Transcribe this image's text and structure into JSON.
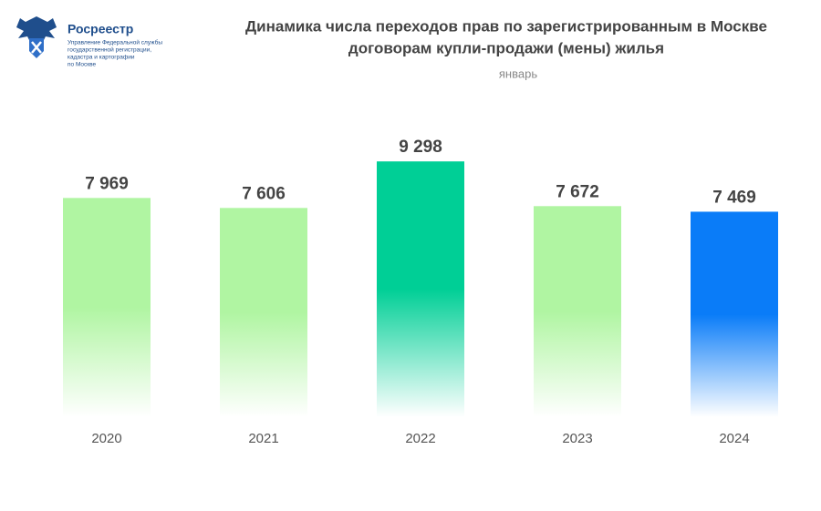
{
  "logo": {
    "name": "Росреестр",
    "lines": [
      "Управление Федеральной службы",
      "государственной регистрации,",
      "кадастра и картографии",
      "по Москве"
    ]
  },
  "chart_data": {
    "type": "bar",
    "title": [
      "Динамика числа переходов прав по зарегистрированным в Москве",
      "договорам купли-продажи (мены) жилья"
    ],
    "subtitle": "январь",
    "categories": [
      "2020",
      "2021",
      "2022",
      "2023",
      "2024"
    ],
    "values": [
      7969,
      7606,
      9298,
      7672,
      7469
    ],
    "value_labels": [
      "7 969",
      "7 606",
      "9 298",
      "7 672",
      "7 469"
    ],
    "colors": [
      "#b0f5a2",
      "#b0f5a2",
      "#00cf96",
      "#b0f5a2",
      "#0a7cf8"
    ],
    "ylim": [
      0,
      10000
    ]
  }
}
